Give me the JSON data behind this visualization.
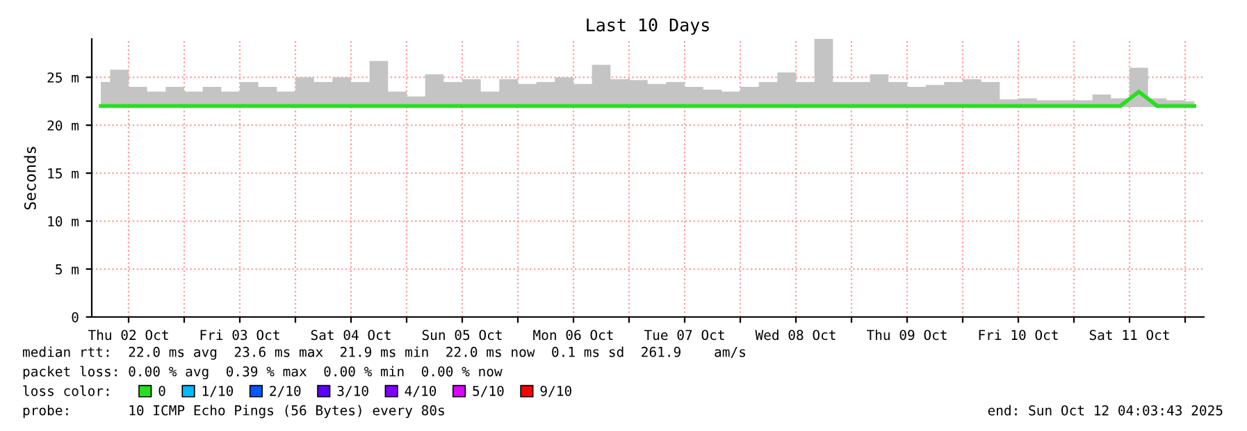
{
  "chart_data": {
    "type": "line",
    "title": "Last 10 Days",
    "ylabel": "Seconds",
    "x": [
      "2025-10-02T06:00",
      "2025-10-02T10:00",
      "2025-10-02T14:00",
      "2025-10-02T18:00",
      "2025-10-02T22:00",
      "2025-10-03T02:00",
      "2025-10-03T06:00",
      "2025-10-03T10:00",
      "2025-10-03T14:00",
      "2025-10-03T18:00",
      "2025-10-03T22:00",
      "2025-10-04T02:00",
      "2025-10-04T06:00",
      "2025-10-04T10:00",
      "2025-10-04T14:00",
      "2025-10-04T18:00",
      "2025-10-04T22:00",
      "2025-10-05T02:00",
      "2025-10-05T06:00",
      "2025-10-05T10:00",
      "2025-10-05T14:00",
      "2025-10-05T18:00",
      "2025-10-05T22:00",
      "2025-10-06T02:00",
      "2025-10-06T06:00",
      "2025-10-06T10:00",
      "2025-10-06T14:00",
      "2025-10-06T18:00",
      "2025-10-06T22:00",
      "2025-10-07T02:00",
      "2025-10-07T06:00",
      "2025-10-07T10:00",
      "2025-10-07T14:00",
      "2025-10-07T18:00",
      "2025-10-07T22:00",
      "2025-10-08T02:00",
      "2025-10-08T06:00",
      "2025-10-08T10:00",
      "2025-10-08T14:00",
      "2025-10-08T18:00",
      "2025-10-08T22:00",
      "2025-10-09T02:00",
      "2025-10-09T06:00",
      "2025-10-09T10:00",
      "2025-10-09T14:00",
      "2025-10-09T18:00",
      "2025-10-09T22:00",
      "2025-10-10T02:00",
      "2025-10-10T06:00",
      "2025-10-10T10:00",
      "2025-10-10T14:00",
      "2025-10-10T18:00",
      "2025-10-10T22:00",
      "2025-10-11T02:00",
      "2025-10-11T06:00",
      "2025-10-11T10:00",
      "2025-10-11T14:00",
      "2025-10-11T18:00",
      "2025-10-11T22:00",
      "2025-10-12T02:00"
    ],
    "series": [
      {
        "name": "0",
        "color": "#26e020",
        "values": [
          22.0,
          22.0,
          22.0,
          22.0,
          22.0,
          22.0,
          22.0,
          22.0,
          22.0,
          22.0,
          22.0,
          22.0,
          22.0,
          22.0,
          22.0,
          22.0,
          22.0,
          22.0,
          22.0,
          22.0,
          22.0,
          22.0,
          22.0,
          22.0,
          22.0,
          22.0,
          22.0,
          22.0,
          22.0,
          22.0,
          22.0,
          22.0,
          22.0,
          22.0,
          22.0,
          22.0,
          22.0,
          22.0,
          22.0,
          22.0,
          22.0,
          22.0,
          22.0,
          22.0,
          22.0,
          22.0,
          22.0,
          22.0,
          22.0,
          22.0,
          22.0,
          22.0,
          22.0,
          22.0,
          22.0,
          22.0,
          23.5,
          22.0,
          22.0,
          22.0
        ],
        "lower": [
          21.9,
          21.9,
          21.9,
          21.9,
          21.9,
          21.9,
          21.9,
          21.9,
          21.9,
          21.9,
          21.9,
          21.9,
          21.9,
          21.9,
          21.9,
          21.9,
          21.9,
          21.9,
          21.9,
          21.9,
          21.9,
          21.9,
          21.9,
          21.9,
          21.9,
          21.9,
          21.9,
          21.9,
          21.9,
          21.9,
          21.9,
          21.9,
          21.9,
          21.9,
          21.9,
          21.9,
          21.9,
          21.9,
          21.9,
          21.9,
          21.9,
          21.9,
          21.9,
          21.9,
          21.9,
          21.9,
          21.9,
          21.9,
          21.9,
          21.9,
          21.9,
          21.9,
          21.9,
          21.9,
          21.9,
          21.9,
          21.9,
          21.9,
          21.9,
          21.9
        ],
        "upper": [
          24.5,
          25.8,
          24.0,
          23.5,
          24.0,
          23.5,
          24.0,
          23.5,
          24.5,
          24.0,
          23.5,
          25.0,
          24.5,
          25.0,
          24.5,
          26.7,
          23.5,
          23.0,
          25.3,
          24.5,
          24.8,
          23.5,
          24.8,
          24.3,
          24.5,
          25.0,
          24.3,
          26.3,
          24.8,
          24.7,
          24.3,
          24.5,
          24.0,
          23.7,
          23.5,
          24.0,
          24.5,
          25.5,
          24.5,
          29.0,
          24.5,
          24.5,
          25.3,
          24.5,
          24.0,
          24.2,
          24.5,
          24.8,
          24.5,
          22.7,
          22.8,
          22.6,
          22.6,
          22.6,
          23.2,
          22.8,
          26.0,
          22.8,
          22.6,
          22.5
        ]
      },
      {
        "name": "1/10",
        "color": "#00b8ff",
        "values": [
          null,
          null,
          null,
          null,
          null,
          null,
          null,
          null,
          null,
          null,
          null,
          null,
          null,
          null,
          null,
          null,
          null,
          null,
          null,
          null,
          null,
          null,
          null,
          null,
          null,
          null,
          null,
          null,
          null,
          null,
          null,
          null,
          null,
          null,
          null,
          null,
          null,
          null,
          null,
          null,
          null,
          null,
          null,
          null,
          null,
          null,
          null,
          null,
          null,
          null,
          null,
          null,
          null,
          null,
          null,
          null,
          null,
          null,
          null,
          null
        ]
      },
      {
        "name": "2/10",
        "color": "#0059ff",
        "values": [
          null,
          null,
          null,
          null,
          null,
          null,
          null,
          null,
          null,
          null,
          null,
          null,
          null,
          null,
          null,
          null,
          null,
          null,
          null,
          null,
          null,
          null,
          null,
          null,
          null,
          null,
          null,
          null,
          null,
          null,
          null,
          null,
          null,
          null,
          null,
          null,
          null,
          null,
          null,
          null,
          null,
          null,
          null,
          null,
          null,
          null,
          null,
          null,
          null,
          null,
          null,
          null,
          null,
          null,
          null,
          null,
          null,
          null,
          null,
          null
        ]
      },
      {
        "name": "3/10",
        "color": "#5e00ff",
        "values": [
          null,
          null,
          null,
          null,
          null,
          null,
          null,
          null,
          null,
          null,
          null,
          null,
          null,
          null,
          null,
          null,
          null,
          null,
          null,
          null,
          null,
          null,
          null,
          null,
          null,
          null,
          null,
          null,
          null,
          null,
          null,
          null,
          null,
          null,
          null,
          null,
          null,
          null,
          null,
          null,
          null,
          null,
          null,
          null,
          null,
          null,
          null,
          null,
          null,
          null,
          null,
          null,
          null,
          null,
          null,
          null,
          null,
          null,
          null,
          null
        ]
      },
      {
        "name": "4/10",
        "color": "#7e00ff",
        "values": [
          null,
          null,
          null,
          null,
          null,
          null,
          null,
          null,
          null,
          null,
          null,
          null,
          null,
          null,
          null,
          null,
          null,
          null,
          null,
          null,
          null,
          null,
          null,
          null,
          null,
          null,
          null,
          null,
          null,
          null,
          null,
          null,
          null,
          null,
          null,
          null,
          null,
          null,
          null,
          null,
          null,
          null,
          null,
          null,
          null,
          null,
          null,
          null,
          null,
          null,
          null,
          null,
          null,
          null,
          null,
          null,
          null,
          null,
          null,
          null
        ]
      },
      {
        "name": "5/10",
        "color": "#dd00ff",
        "values": [
          null,
          null,
          null,
          null,
          null,
          null,
          null,
          null,
          null,
          null,
          null,
          null,
          null,
          null,
          null,
          null,
          null,
          null,
          null,
          null,
          null,
          null,
          null,
          null,
          null,
          null,
          null,
          null,
          null,
          null,
          null,
          null,
          null,
          null,
          null,
          null,
          null,
          null,
          null,
          null,
          null,
          null,
          null,
          null,
          null,
          null,
          null,
          null,
          null,
          null,
          null,
          null,
          null,
          null,
          null,
          null,
          null,
          null,
          null,
          null
        ]
      },
      {
        "name": "9/10",
        "color": "#ff0000",
        "values": [
          null,
          null,
          null,
          null,
          null,
          null,
          null,
          null,
          null,
          null,
          null,
          null,
          null,
          null,
          null,
          null,
          null,
          null,
          null,
          null,
          null,
          null,
          null,
          null,
          null,
          null,
          null,
          null,
          null,
          null,
          null,
          null,
          null,
          null,
          null,
          null,
          null,
          null,
          null,
          null,
          null,
          null,
          null,
          null,
          null,
          null,
          null,
          null,
          null,
          null,
          null,
          null,
          null,
          null,
          null,
          null,
          null,
          null,
          null,
          null
        ]
      }
    ],
    "legend_title": "loss color:",
    "legend": "bottom",
    "xlim": [
      "2025-10-02T04:03",
      "2025-10-12T04:03"
    ],
    "xticks": [
      {
        "value": "2025-10-02T12:00",
        "label": "Thu 02 Oct"
      },
      {
        "value": "2025-10-03T00:00",
        "label": null
      },
      {
        "value": "2025-10-03T12:00",
        "label": "Fri 03 Oct"
      },
      {
        "value": "2025-10-04T00:00",
        "label": null
      },
      {
        "value": "2025-10-04T12:00",
        "label": "Sat 04 Oct"
      },
      {
        "value": "2025-10-05T00:00",
        "label": null
      },
      {
        "value": "2025-10-05T12:00",
        "label": "Sun 05 Oct"
      },
      {
        "value": "2025-10-06T00:00",
        "label": null
      },
      {
        "value": "2025-10-06T12:00",
        "label": "Mon 06 Oct"
      },
      {
        "value": "2025-10-07T00:00",
        "label": null
      },
      {
        "value": "2025-10-07T12:00",
        "label": "Tue 07 Oct"
      },
      {
        "value": "2025-10-08T00:00",
        "label": null
      },
      {
        "value": "2025-10-08T12:00",
        "label": "Wed 08 Oct"
      },
      {
        "value": "2025-10-09T00:00",
        "label": null
      },
      {
        "value": "2025-10-09T12:00",
        "label": "Thu 09 Oct"
      },
      {
        "value": "2025-10-10T00:00",
        "label": null
      },
      {
        "value": "2025-10-10T12:00",
        "label": "Fri 10 Oct"
      },
      {
        "value": "2025-10-11T00:00",
        "label": null
      },
      {
        "value": "2025-10-11T12:00",
        "label": "Sat 11 Oct"
      },
      {
        "value": "2025-10-12T00:00",
        "label": null
      }
    ],
    "ylim": [
      0,
      29
    ],
    "yticks": [
      0,
      {
        "value": 5,
        "label": "5 m"
      },
      {
        "value": 10,
        "label": "10 m"
      },
      {
        "value": 15,
        "label": "15 m"
      },
      {
        "value": 20,
        "label": "20 m"
      },
      {
        "value": 25,
        "label": "25 m"
      }
    ],
    "grid": true,
    "marker": "none",
    "line_style": "solid",
    "annotations": [
      "median rtt:  22.0 ms avg  23.6 ms max  21.9 ms min  22.0 ms now  0.1 ms sd  261.9    am/s",
      "packet loss: 0.00 % avg  0.39 % max  0.00 % min  0.00 % now",
      "probe:       10 ICMP Echo Pings (56 Bytes) every 80s",
      "end: Sun Oct 12 04:03:43 2025"
    ]
  }
}
